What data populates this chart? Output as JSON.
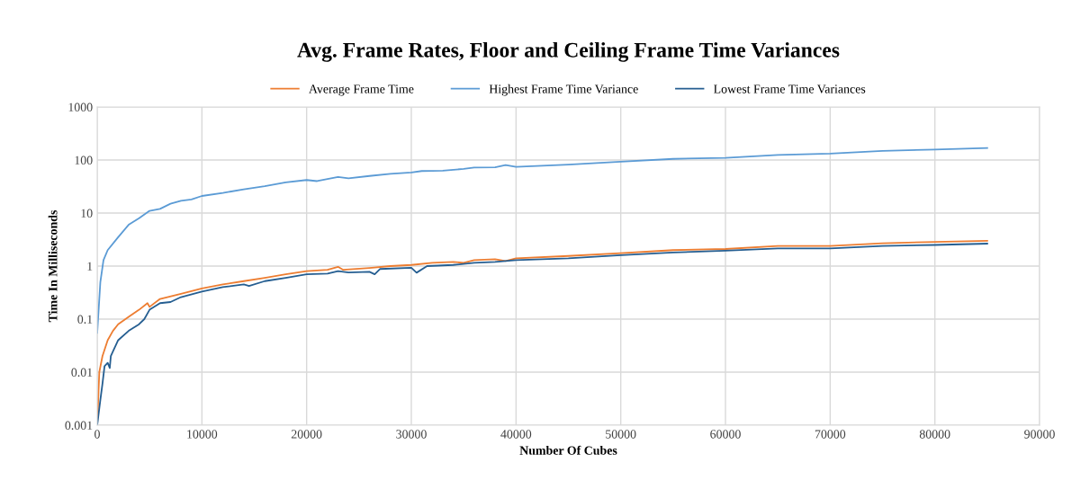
{
  "chart_data": {
    "type": "line",
    "title": "Avg. Frame Rates, Floor and Ceiling Frame Time Variances",
    "xlabel": "Number Of Cubes",
    "ylabel": "Time In Milliseconds",
    "log": "y",
    "grid": true,
    "legend": "top",
    "marker": "none",
    "line_style": "solid",
    "xlim": [
      0,
      90000
    ],
    "xticks": [
      0,
      10000,
      20000,
      30000,
      40000,
      50000,
      60000,
      70000,
      80000,
      90000
    ],
    "ylim": [
      0.001,
      1000
    ],
    "yticks": [
      {
        "value": 0.001,
        "label": "0.001"
      },
      {
        "value": 0.01,
        "label": "0.01"
      },
      {
        "value": 0.1,
        "label": "0.1"
      },
      1,
      10,
      100,
      1000
    ],
    "series": [
      {
        "name": "Average Frame Time",
        "color": "#ed7d31",
        "x": [
          0,
          200,
          500,
          1000,
          1500,
          2000,
          3000,
          4000,
          4800,
          5000,
          6000,
          8000,
          10000,
          12000,
          14000,
          16000,
          18000,
          20000,
          22000,
          23000,
          23500,
          26000,
          28000,
          30000,
          32000,
          34000,
          35000,
          36000,
          38000,
          39000,
          40000,
          45000,
          50000,
          55000,
          60000,
          65000,
          70000,
          75000,
          80000,
          85000
        ],
        "values": [
          0.001,
          0.01,
          0.02,
          0.04,
          0.06,
          0.08,
          0.11,
          0.15,
          0.2,
          0.17,
          0.24,
          0.3,
          0.38,
          0.45,
          0.52,
          0.6,
          0.7,
          0.8,
          0.85,
          0.97,
          0.85,
          0.92,
          1.0,
          1.05,
          1.15,
          1.2,
          1.15,
          1.3,
          1.35,
          1.25,
          1.4,
          1.55,
          1.75,
          2.0,
          2.1,
          2.4,
          2.4,
          2.7,
          2.85,
          3.0
        ]
      },
      {
        "name": "Highest Frame Time Variance",
        "color": "#5b9bd5",
        "x": [
          0,
          300,
          600,
          1000,
          2000,
          3000,
          4000,
          5000,
          6000,
          7000,
          8000,
          9000,
          10000,
          12000,
          14000,
          16000,
          18000,
          20000,
          21000,
          23000,
          24000,
          26000,
          28000,
          30000,
          31000,
          33000,
          35000,
          36000,
          38000,
          39000,
          40000,
          45000,
          50000,
          55000,
          60000,
          65000,
          70000,
          75000,
          80000,
          85000
        ],
        "values": [
          0.055,
          0.5,
          1.3,
          2,
          3.5,
          6,
          8,
          11,
          12,
          15,
          17,
          18,
          21,
          24,
          28,
          32,
          38,
          42,
          40,
          48,
          45,
          50,
          55,
          58,
          62,
          63,
          68,
          72,
          73,
          80,
          74,
          82,
          93,
          105,
          110,
          125,
          132,
          148,
          158,
          168
        ]
      },
      {
        "name": "Lowest Frame Time Variances",
        "color": "#255e91",
        "x": [
          0,
          300,
          500,
          700,
          1000,
          1200,
          1300,
          2000,
          3000,
          4000,
          4500,
          5000,
          6000,
          7000,
          8000,
          10000,
          12000,
          14000,
          14500,
          16000,
          18000,
          20000,
          22000,
          23000,
          24000,
          26000,
          26500,
          27000,
          30000,
          30500,
          31500,
          34000,
          36000,
          38000,
          40000,
          45000,
          50000,
          55000,
          60000,
          65000,
          70000,
          75000,
          80000,
          85000
        ],
        "values": [
          0.001,
          0.003,
          0.006,
          0.013,
          0.015,
          0.012,
          0.02,
          0.04,
          0.06,
          0.08,
          0.1,
          0.15,
          0.2,
          0.21,
          0.26,
          0.33,
          0.4,
          0.45,
          0.42,
          0.52,
          0.6,
          0.7,
          0.72,
          0.8,
          0.76,
          0.78,
          0.7,
          0.88,
          0.93,
          0.75,
          1.0,
          1.05,
          1.15,
          1.2,
          1.3,
          1.4,
          1.6,
          1.8,
          1.95,
          2.15,
          2.15,
          2.4,
          2.5,
          2.65
        ]
      }
    ]
  }
}
